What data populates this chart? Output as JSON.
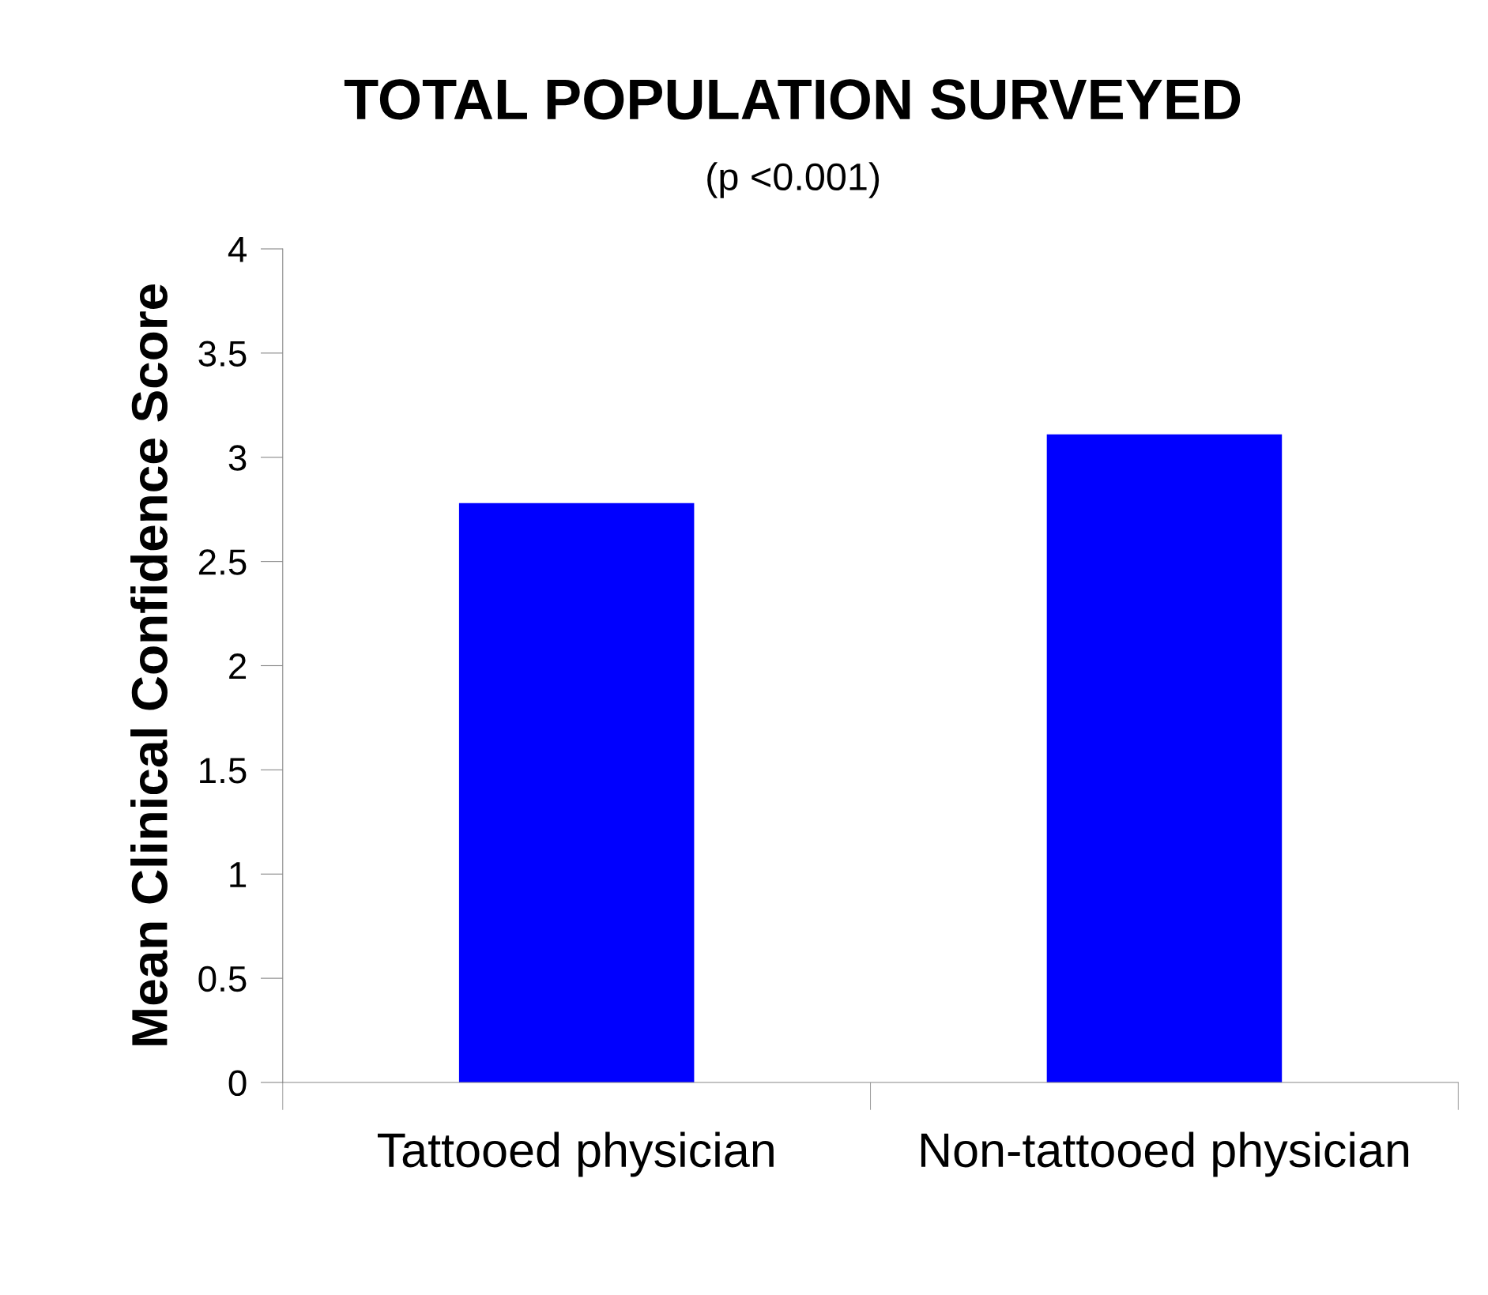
{
  "chart_data": {
    "type": "bar",
    "title": "TOTAL POPULATION SURVEYED",
    "subtitle": "(p <0.001)",
    "ylabel": "Mean Clinical Confidence Score",
    "categories": [
      "Tattooed physician",
      "Non-tattooed physician"
    ],
    "series": [
      {
        "color": "#0000ff",
        "values": [
          2.78,
          3.11
        ]
      }
    ],
    "ylim": [
      0,
      4
    ],
    "yticks": [
      0,
      0.5,
      1,
      1.5,
      2,
      2.5,
      3,
      3.5,
      4
    ],
    "grid": false,
    "legend": false
  }
}
